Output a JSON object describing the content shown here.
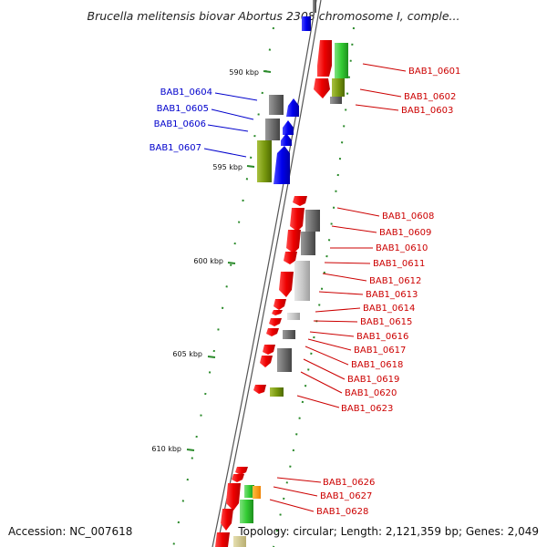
{
  "title": "Brucella melitensis biovar Abortus 2308 chromosome I, comple...",
  "accession_label": "Accession: NC_007618",
  "topology_label": "Topology: circular; Length: 2,121,359 bp; Genes: 2,049",
  "colors": {
    "forward_label": "#0000cc",
    "reverse_label": "#cc0000",
    "tick": "#2a8a2a"
  },
  "scale_ticks": [
    "590 kbp",
    "595 kbp",
    "600 kbp",
    "605 kbp",
    "610 kbp"
  ],
  "genes_left": [
    "BAB1_0604",
    "BAB1_0605",
    "BAB1_0606",
    "BAB1_0607"
  ],
  "genes_right": [
    "BAB1_0601",
    "BAB1_0602",
    "BAB1_0603",
    "BAB1_0608",
    "BAB1_0609",
    "BAB1_0610",
    "BAB1_0611",
    "BAB1_0612",
    "BAB1_0613",
    "BAB1_0614",
    "BAB1_0615",
    "BAB1_0616",
    "BAB1_0617",
    "BAB1_0618",
    "BAB1_0619",
    "BAB1_0620",
    "BAB1_0623",
    "BAB1_0626",
    "BAB1_0627",
    "BAB1_0628"
  ]
}
